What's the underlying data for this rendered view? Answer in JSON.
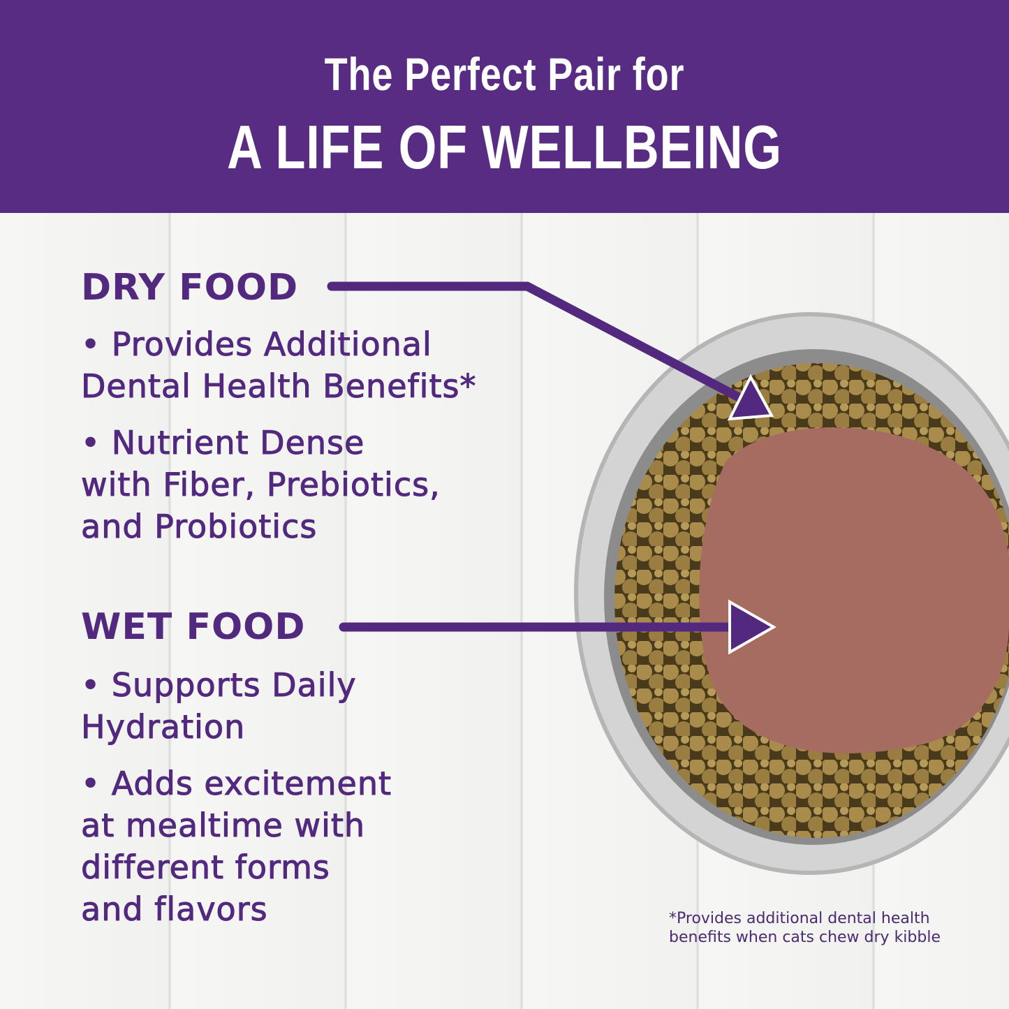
{
  "header": {
    "line1": "The Perfect Pair for",
    "line2": "A LIFE OF WELLBEING"
  },
  "dry": {
    "title": "DRY FOOD",
    "bullets": [
      "• Provides Additional\nDental Health Benefits*",
      "• Nutrient Dense\nwith Fiber, Prebiotics,\nand Probiotics"
    ]
  },
  "wet": {
    "title": "WET FOOD",
    "bullets": [
      "• Supports Daily\nHydration",
      "• Adds excitement\nat mealtime with\ndifferent forms\nand flavors"
    ]
  },
  "footnote": "*Provides additional dental health\nbenefits when cats chew dry kibble",
  "colors": {
    "brand_purple": "#582c83",
    "text_purple": "#52297f"
  }
}
